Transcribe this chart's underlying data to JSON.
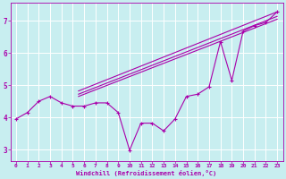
{
  "xlabel": "Windchill (Refroidissement éolien,°C)",
  "bg_color": "#c8eef0",
  "line_color": "#aa00aa",
  "grid_color": "#aadddd",
  "xlim": [
    -0.5,
    23.5
  ],
  "ylim": [
    2.65,
    7.55
  ],
  "xticks": [
    0,
    1,
    2,
    3,
    4,
    5,
    6,
    7,
    8,
    9,
    10,
    11,
    12,
    13,
    14,
    15,
    16,
    17,
    18,
    19,
    20,
    21,
    22,
    23
  ],
  "yticks": [
    3,
    4,
    5,
    6,
    7
  ],
  "zigzag_x": [
    0,
    1,
    2,
    3,
    4,
    5,
    6,
    7,
    8,
    9,
    10,
    11,
    12,
    13,
    14,
    15,
    16,
    17,
    18,
    19,
    20,
    21,
    22,
    23
  ],
  "zigzag_y": [
    3.95,
    4.15,
    4.5,
    4.65,
    4.45,
    4.35,
    4.35,
    4.45,
    4.45,
    4.15,
    2.98,
    3.82,
    3.82,
    3.58,
    3.95,
    4.65,
    4.72,
    4.95,
    6.35,
    5.15,
    6.68,
    6.85,
    6.95,
    7.28
  ],
  "straight_lines": [
    {
      "x": [
        5.5,
        23
      ],
      "y": [
        4.82,
        7.28
      ]
    },
    {
      "x": [
        5.5,
        23
      ],
      "y": [
        4.72,
        7.14
      ]
    },
    {
      "x": [
        5.5,
        23
      ],
      "y": [
        4.65,
        7.05
      ]
    }
  ]
}
